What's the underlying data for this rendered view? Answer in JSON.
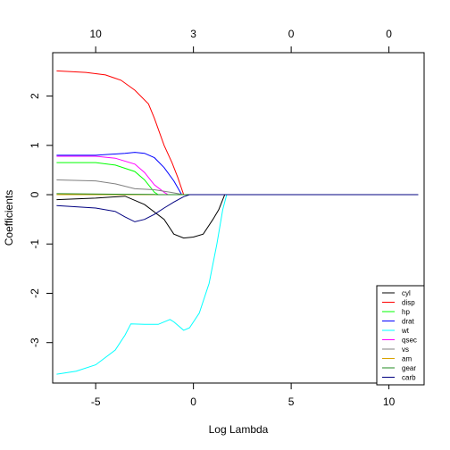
{
  "chart_data": {
    "type": "line",
    "xlabel": "Log Lambda",
    "ylabel": "Coefficients",
    "xlim": [
      -7.2,
      11.8
    ],
    "ylim": [
      -3.82,
      2.88
    ],
    "x_ticks": [
      -5,
      0,
      5,
      10
    ],
    "y_ticks": [
      -3,
      -2,
      -1,
      0,
      1,
      2
    ],
    "top_axis": {
      "ticks": [
        {
          "x": -5,
          "label": "10"
        },
        {
          "x": 0,
          "label": "3"
        },
        {
          "x": 5,
          "label": "0"
        },
        {
          "x": 10,
          "label": "0"
        }
      ]
    },
    "legend": {
      "position": "bottom-right",
      "entries": [
        "cyl",
        "disp",
        "hp",
        "drat",
        "wt",
        "qsec",
        "vs",
        "am",
        "gear",
        "carb"
      ]
    },
    "series": [
      {
        "name": "cyl",
        "color": "#000000",
        "points": [
          [
            -7,
            -0.1
          ],
          [
            -5,
            -0.07
          ],
          [
            -3.5,
            -0.03
          ],
          [
            -2.5,
            -0.2
          ],
          [
            -1.5,
            -0.5
          ],
          [
            -1,
            -0.8
          ],
          [
            -0.5,
            -0.88
          ],
          [
            0,
            -0.86
          ],
          [
            0.5,
            -0.8
          ],
          [
            1,
            -0.5
          ],
          [
            1.3,
            -0.3
          ],
          [
            1.6,
            0
          ],
          [
            11.5,
            0
          ]
        ]
      },
      {
        "name": "disp",
        "color": "#ff0000",
        "points": [
          [
            -7,
            2.51
          ],
          [
            -5.5,
            2.48
          ],
          [
            -4.5,
            2.43
          ],
          [
            -3.7,
            2.32
          ],
          [
            -3,
            2.12
          ],
          [
            -2.3,
            1.84
          ],
          [
            -2,
            1.55
          ],
          [
            -1.5,
            1.0
          ],
          [
            -1.1,
            0.65
          ],
          [
            -0.8,
            0.35
          ],
          [
            -0.5,
            0
          ],
          [
            11.5,
            0
          ]
        ]
      },
      {
        "name": "hp",
        "color": "#00ff00",
        "points": [
          [
            -7,
            0.65
          ],
          [
            -5,
            0.65
          ],
          [
            -4,
            0.6
          ],
          [
            -3,
            0.47
          ],
          [
            -2.5,
            0.3
          ],
          [
            -2,
            0.05
          ],
          [
            -1.8,
            0
          ],
          [
            11.5,
            0
          ]
        ]
      },
      {
        "name": "drat",
        "color": "#0000ff",
        "points": [
          [
            -7,
            0.8
          ],
          [
            -5,
            0.8
          ],
          [
            -3.5,
            0.84
          ],
          [
            -3,
            0.86
          ],
          [
            -2.5,
            0.84
          ],
          [
            -2,
            0.75
          ],
          [
            -1.5,
            0.55
          ],
          [
            -1,
            0.28
          ],
          [
            -0.6,
            0
          ],
          [
            11.5,
            0
          ]
        ]
      },
      {
        "name": "wt",
        "color": "#00ffff",
        "points": [
          [
            -7,
            -3.64
          ],
          [
            -6,
            -3.58
          ],
          [
            -5,
            -3.45
          ],
          [
            -4,
            -3.15
          ],
          [
            -3.5,
            -2.85
          ],
          [
            -3.2,
            -2.62
          ],
          [
            -2.5,
            -2.63
          ],
          [
            -1.8,
            -2.63
          ],
          [
            -1.2,
            -2.53
          ],
          [
            -1,
            -2.58
          ],
          [
            -0.5,
            -2.75
          ],
          [
            -0.2,
            -2.7
          ],
          [
            0.3,
            -2.4
          ],
          [
            0.8,
            -1.8
          ],
          [
            1.2,
            -1.0
          ],
          [
            1.5,
            -0.3
          ],
          [
            1.7,
            0
          ],
          [
            11.5,
            0
          ]
        ]
      },
      {
        "name": "qsec",
        "color": "#ff00ff",
        "points": [
          [
            -7,
            0.78
          ],
          [
            -5,
            0.78
          ],
          [
            -4,
            0.74
          ],
          [
            -3,
            0.62
          ],
          [
            -2.5,
            0.45
          ],
          [
            -2,
            0.2
          ],
          [
            -1.5,
            0.05
          ],
          [
            -1.3,
            0
          ],
          [
            11.5,
            0
          ]
        ]
      },
      {
        "name": "vs",
        "color": "#808080",
        "points": [
          [
            -7,
            0.3
          ],
          [
            -5,
            0.28
          ],
          [
            -4,
            0.22
          ],
          [
            -3,
            0.12
          ],
          [
            -2,
            0.1
          ],
          [
            -1.2,
            0.05
          ],
          [
            -0.5,
            0
          ],
          [
            11.5,
            0
          ]
        ]
      },
      {
        "name": "am",
        "color": "#d9a300",
        "points": [
          [
            -7,
            0
          ],
          [
            11.5,
            0
          ]
        ]
      },
      {
        "name": "gear",
        "color": "#228b22",
        "points": [
          [
            -7,
            0.02
          ],
          [
            -4,
            0.01
          ],
          [
            -2,
            0.005
          ],
          [
            -1.8,
            0
          ],
          [
            11.5,
            0
          ]
        ]
      },
      {
        "name": "carb",
        "color": "#000080",
        "points": [
          [
            -7,
            -0.22
          ],
          [
            -5,
            -0.27
          ],
          [
            -4,
            -0.34
          ],
          [
            -3.5,
            -0.45
          ],
          [
            -3,
            -0.55
          ],
          [
            -2.5,
            -0.5
          ],
          [
            -2,
            -0.4
          ],
          [
            -1.5,
            -0.27
          ],
          [
            -1,
            -0.15
          ],
          [
            -0.5,
            -0.04
          ],
          [
            -0.2,
            0
          ],
          [
            11.5,
            0
          ]
        ]
      }
    ]
  }
}
